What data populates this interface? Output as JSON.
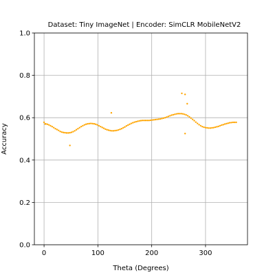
{
  "chart_data": {
    "type": "scatter",
    "title": "Dataset: Tiny ImageNet | Encoder: SimCLR MobileNetV2",
    "xlabel": "Theta (Degrees)",
    "ylabel": "Accuracy",
    "xlim": [
      -18,
      378
    ],
    "ylim": [
      0.0,
      1.0
    ],
    "xticks": [
      0,
      100,
      200,
      300
    ],
    "xtick_labels": [
      "0",
      "100",
      "200",
      "300"
    ],
    "yticks": [
      0.0,
      0.2,
      0.4,
      0.6,
      0.8,
      1.0
    ],
    "ytick_labels": [
      "0.0",
      "0.2",
      "0.4",
      "0.6",
      "0.8",
      "1.0"
    ],
    "grid": true,
    "color": "#ffa500",
    "x": [
      0,
      3,
      6,
      9,
      12,
      15,
      18,
      21,
      24,
      27,
      30,
      33,
      36,
      39,
      42,
      45,
      48,
      51,
      54,
      57,
      60,
      63,
      66,
      69,
      72,
      75,
      78,
      81,
      84,
      87,
      90,
      93,
      96,
      99,
      102,
      105,
      108,
      111,
      114,
      117,
      120,
      123,
      126,
      129,
      132,
      135,
      138,
      141,
      144,
      147,
      150,
      153,
      156,
      159,
      162,
      165,
      168,
      171,
      174,
      177,
      180,
      183,
      186,
      189,
      192,
      195,
      198,
      201,
      204,
      207,
      210,
      213,
      216,
      219,
      222,
      225,
      228,
      231,
      234,
      237,
      240,
      243,
      246,
      249,
      252,
      255,
      258,
      261,
      264,
      267,
      270,
      273,
      276,
      279,
      282,
      285,
      288,
      291,
      294,
      297,
      300,
      303,
      306,
      309,
      312,
      315,
      318,
      321,
      324,
      327,
      330,
      333,
      336,
      339,
      342,
      345,
      348,
      351,
      354,
      357,
      48,
      125,
      256,
      262,
      266,
      262,
      2
    ],
    "y": [
      0.578,
      0.571,
      0.569,
      0.566,
      0.562,
      0.558,
      0.553,
      0.548,
      0.544,
      0.54,
      0.535,
      0.532,
      0.53,
      0.529,
      0.528,
      0.528,
      0.529,
      0.531,
      0.534,
      0.538,
      0.543,
      0.548,
      0.553,
      0.558,
      0.562,
      0.566,
      0.569,
      0.571,
      0.572,
      0.573,
      0.572,
      0.571,
      0.569,
      0.566,
      0.562,
      0.558,
      0.554,
      0.55,
      0.546,
      0.543,
      0.541,
      0.539,
      0.538,
      0.538,
      0.539,
      0.54,
      0.542,
      0.545,
      0.548,
      0.552,
      0.556,
      0.561,
      0.565,
      0.569,
      0.573,
      0.576,
      0.579,
      0.581,
      0.583,
      0.585,
      0.586,
      0.587,
      0.587,
      0.587,
      0.587,
      0.587,
      0.588,
      0.589,
      0.59,
      0.591,
      0.592,
      0.593,
      0.594,
      0.596,
      0.598,
      0.6,
      0.603,
      0.606,
      0.609,
      0.612,
      0.614,
      0.616,
      0.618,
      0.619,
      0.619,
      0.619,
      0.618,
      0.616,
      0.613,
      0.609,
      0.604,
      0.598,
      0.592,
      0.586,
      0.579,
      0.573,
      0.567,
      0.562,
      0.558,
      0.555,
      0.553,
      0.552,
      0.551,
      0.551,
      0.552,
      0.553,
      0.555,
      0.557,
      0.559,
      0.562,
      0.565,
      0.567,
      0.57,
      0.572,
      0.574,
      0.576,
      0.577,
      0.578,
      0.578,
      0.578,
      0.469,
      0.623,
      0.715,
      0.71,
      0.666,
      0.525,
      0.57
    ]
  }
}
